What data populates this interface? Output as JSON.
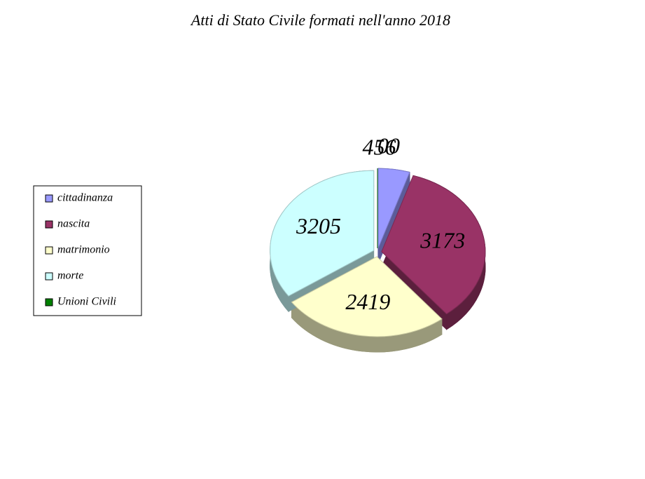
{
  "chart_data": {
    "type": "pie",
    "title": "Atti di Stato Civile formati nell'anno 2018",
    "categories": [
      "cittadinanza",
      "nascita",
      "matrimonio",
      "morte",
      "Unioni Civili"
    ],
    "values": [
      456,
      3173,
      2419,
      3205,
      0
    ],
    "value_labels": [
      "456",
      "3173",
      "2419",
      "3205",
      "00"
    ],
    "colors": [
      "#9999ff",
      "#993366",
      "#ffffcc",
      "#ccffff",
      "#008000"
    ],
    "legend": "left"
  }
}
